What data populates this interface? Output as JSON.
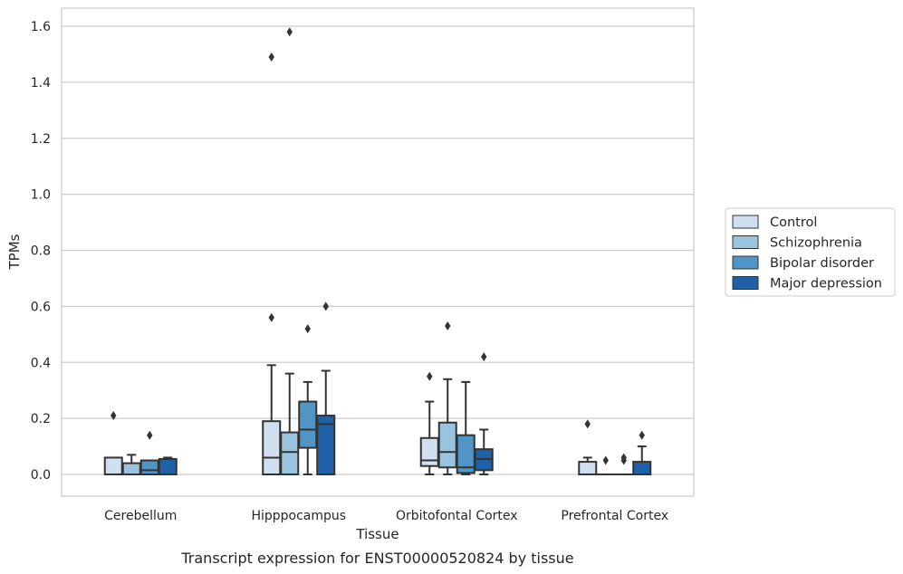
{
  "chart_data": {
    "type": "box",
    "xlabel": "Tissue",
    "ylabel": "TPMs",
    "caption": "Transcript expression for ENST00000520824 by tissue",
    "ylim": [
      -0.08,
      1.66
    ],
    "yticks": [
      "0.0",
      "0.2",
      "0.4",
      "0.6",
      "0.8",
      "1.0",
      "1.2",
      "1.4",
      "1.6"
    ],
    "grid": "horizontal",
    "legend_position": "right",
    "categories": [
      "Cerebellum",
      "Hipppocampus",
      "Orbitofontal Cortex",
      "Prefrontal Cortex"
    ],
    "series": [
      {
        "name": "Control",
        "color": "#d1e0f0",
        "boxes": [
          {
            "min": 0.0,
            "q1": 0.0,
            "median": 0.0,
            "q3": 0.06,
            "max": 0.06,
            "outliers": [
              0.21
            ]
          },
          {
            "min": 0.0,
            "q1": 0.0,
            "median": 0.06,
            "q3": 0.19,
            "max": 0.39,
            "outliers": [
              0.56,
              1.49
            ]
          },
          {
            "min": 0.0,
            "q1": 0.03,
            "median": 0.05,
            "q3": 0.13,
            "max": 0.26,
            "outliers": [
              0.35
            ]
          },
          {
            "min": 0.0,
            "q1": 0.0,
            "median": 0.0,
            "q3": 0.045,
            "max": 0.06,
            "outliers": [
              0.18
            ]
          }
        ]
      },
      {
        "name": "Schizophrenia",
        "color": "#9ac3dd",
        "boxes": [
          {
            "min": 0.0,
            "q1": 0.0,
            "median": 0.0,
            "q3": 0.04,
            "max": 0.07,
            "outliers": []
          },
          {
            "min": 0.0,
            "q1": 0.0,
            "median": 0.08,
            "q3": 0.15,
            "max": 0.36,
            "outliers": [
              1.58
            ]
          },
          {
            "min": 0.0,
            "q1": 0.025,
            "median": 0.08,
            "q3": 0.185,
            "max": 0.34,
            "outliers": [
              0.53
            ]
          },
          {
            "min": 0.0,
            "q1": 0.0,
            "median": 0.0,
            "q3": 0.0,
            "max": 0.0,
            "outliers": [
              0.05
            ]
          }
        ]
      },
      {
        "name": "Bipolar disorder",
        "color": "#5095c6",
        "boxes": [
          {
            "min": 0.0,
            "q1": 0.0,
            "median": 0.015,
            "q3": 0.05,
            "max": 0.05,
            "outliers": [
              0.14
            ]
          },
          {
            "min": 0.0,
            "q1": 0.095,
            "median": 0.16,
            "q3": 0.26,
            "max": 0.33,
            "outliers": [
              0.52
            ]
          },
          {
            "min": 0.0,
            "q1": 0.005,
            "median": 0.025,
            "q3": 0.14,
            "max": 0.33,
            "outliers": []
          },
          {
            "min": 0.0,
            "q1": 0.0,
            "median": 0.0,
            "q3": 0.0,
            "max": 0.0,
            "outliers": [
              0.05,
              0.06
            ]
          }
        ]
      },
      {
        "name": "Major depression",
        "color": "#2060a6",
        "boxes": [
          {
            "min": 0.0,
            "q1": 0.0,
            "median": 0.0,
            "q3": 0.055,
            "max": 0.06,
            "outliers": []
          },
          {
            "min": 0.0,
            "q1": 0.0,
            "median": 0.18,
            "q3": 0.21,
            "max": 0.37,
            "outliers": [
              0.6
            ]
          },
          {
            "min": 0.0,
            "q1": 0.015,
            "median": 0.055,
            "q3": 0.09,
            "max": 0.16,
            "outliers": [
              0.42
            ]
          },
          {
            "min": 0.0,
            "q1": 0.0,
            "median": 0.0,
            "q3": 0.045,
            "max": 0.1,
            "outliers": [
              0.14
            ]
          }
        ]
      }
    ]
  }
}
